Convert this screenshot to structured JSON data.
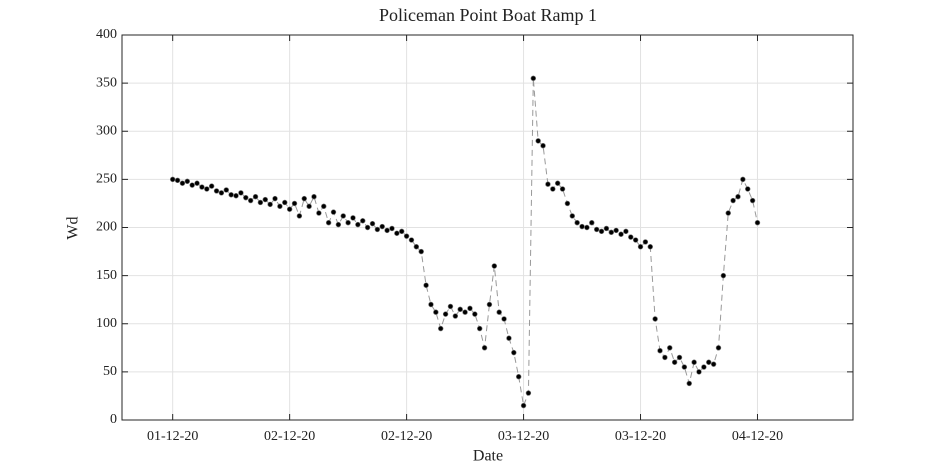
{
  "chart_data": {
    "type": "line",
    "title": "Policeman Point Boat Ramp 1",
    "x_label": "Date",
    "y_label": "Wd",
    "x": [
      0,
      0.025,
      0.05,
      0.075,
      0.1,
      0.125,
      0.15,
      0.175,
      0.2,
      0.225,
      0.25,
      0.275,
      0.3,
      0.325,
      0.35,
      0.375,
      0.4,
      0.425,
      0.45,
      0.475,
      0.5,
      0.525,
      0.55,
      0.575,
      0.6,
      0.625,
      0.65,
      0.675,
      0.7,
      0.725,
      0.75,
      0.775,
      0.8,
      0.825,
      0.85,
      0.875,
      0.9,
      0.925,
      0.95,
      0.975,
      1,
      1.025,
      1.05,
      1.075,
      1.1,
      1.125,
      1.15,
      1.175,
      1.2,
      1.225,
      1.25,
      1.275,
      1.3,
      1.325,
      1.35,
      1.375,
      1.4,
      1.425,
      1.45,
      1.475,
      1.5,
      1.525,
      1.55,
      1.575,
      1.6,
      1.625,
      1.65,
      1.675,
      1.7,
      1.725,
      1.75,
      1.775,
      1.8,
      1.825,
      1.85,
      1.875,
      1.9,
      1.925,
      1.95,
      1.975,
      2,
      2.025,
      2.05,
      2.075,
      2.1,
      2.125,
      2.15,
      2.175,
      2.2,
      2.225,
      2.25,
      2.275,
      2.3,
      2.325,
      2.35,
      2.375,
      2.4,
      2.425,
      2.45,
      2.475,
      2.5,
      2.525,
      2.55,
      2.575,
      2.6,
      2.625,
      2.65,
      2.675,
      2.7,
      2.725,
      2.75,
      2.775,
      2.8,
      2.825,
      2.85,
      2.875,
      2.9,
      2.925,
      2.95,
      2.975,
      3
    ],
    "series": [
      {
        "name": "Wd",
        "color": "#000000",
        "line_color": "#999999",
        "values": [
          250,
          249,
          246,
          248,
          244,
          246,
          242,
          240,
          243,
          238,
          236,
          239,
          234,
          233,
          236,
          231,
          228,
          232,
          226,
          229,
          224,
          230,
          222,
          226,
          219,
          225,
          212,
          230,
          222,
          232,
          215,
          222,
          205,
          216,
          203,
          212,
          205,
          210,
          203,
          207,
          200,
          204,
          198,
          201,
          197,
          199,
          194,
          196,
          191,
          187,
          180,
          175,
          140,
          120,
          112,
          95,
          110,
          118,
          108,
          115,
          112,
          116,
          110,
          95,
          75,
          120,
          160,
          112,
          105,
          85,
          70,
          45,
          15,
          28,
          355,
          290,
          285,
          245,
          240,
          246,
          240,
          225,
          212,
          205,
          201,
          200,
          205,
          198,
          196,
          199,
          195,
          197,
          193,
          196,
          190,
          187,
          180,
          185,
          180,
          105,
          72,
          65,
          75,
          60,
          65,
          55,
          38,
          60,
          50,
          55,
          60,
          58,
          75,
          150,
          215,
          228,
          232,
          250,
          240,
          228,
          205
        ]
      }
    ],
    "xlim": [
      -0.26,
      3.49
    ],
    "xticks": [
      {
        "value": 0,
        "label": "01-12-20"
      },
      {
        "value": 0.6,
        "label": "02-12-20"
      },
      {
        "value": 1.2,
        "label": "02-12-20"
      },
      {
        "value": 1.8,
        "label": "03-12-20"
      },
      {
        "value": 2.4,
        "label": "03-12-20"
      },
      {
        "value": 3.0,
        "label": "04-12-20"
      }
    ],
    "ylim": [
      0,
      400
    ],
    "yticks": [
      0,
      50,
      100,
      150,
      200,
      250,
      300,
      350,
      400
    ],
    "grid": true
  }
}
